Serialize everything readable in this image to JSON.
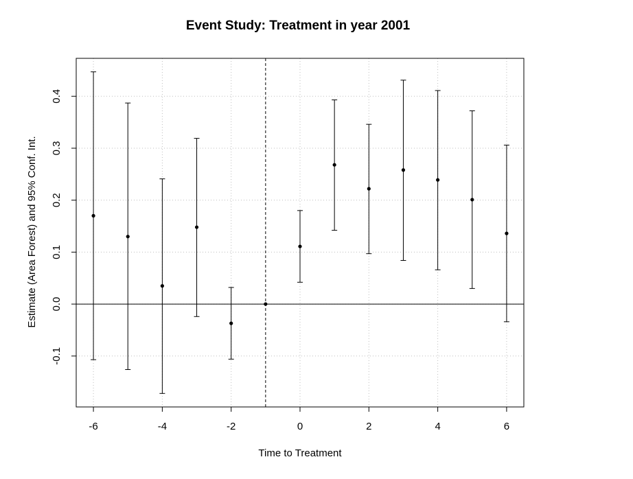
{
  "chart_data": {
    "type": "scatter",
    "title": "Event Study: Treatment in year 2001",
    "xlabel": "Time to Treatment",
    "ylabel": "Estimate (Area Forest) and 95% Conf. Int.",
    "xlim": [
      -6.5,
      6.5
    ],
    "ylim": [
      -0.198,
      0.473
    ],
    "x_ticks": [
      -6,
      -4,
      -2,
      0,
      2,
      4,
      6
    ],
    "y_ticks": [
      -0.1,
      0.0,
      0.1,
      0.2,
      0.3,
      0.4
    ],
    "x_tick_labels": [
      "-6",
      "-4",
      "-2",
      "0",
      "2",
      "4",
      "6"
    ],
    "y_tick_labels": [
      "-0.1",
      "0.0",
      "0.1",
      "0.2",
      "0.3",
      "0.4"
    ],
    "grid": true,
    "reference_line_y": 0,
    "reference_line_x": -1,
    "points": [
      {
        "x": -6,
        "estimate": 0.17,
        "ci_low": -0.107,
        "ci_high": 0.447
      },
      {
        "x": -5,
        "estimate": 0.13,
        "ci_low": -0.126,
        "ci_high": 0.387
      },
      {
        "x": -4,
        "estimate": 0.035,
        "ci_low": -0.172,
        "ci_high": 0.241
      },
      {
        "x": -3,
        "estimate": 0.148,
        "ci_low": -0.024,
        "ci_high": 0.319
      },
      {
        "x": -2,
        "estimate": -0.037,
        "ci_low": -0.106,
        "ci_high": 0.032
      },
      {
        "x": -1,
        "estimate": 0.0
      },
      {
        "x": 0,
        "estimate": 0.111,
        "ci_low": 0.042,
        "ci_high": 0.18
      },
      {
        "x": 1,
        "estimate": 0.268,
        "ci_low": 0.142,
        "ci_high": 0.393
      },
      {
        "x": 2,
        "estimate": 0.222,
        "ci_low": 0.097,
        "ci_high": 0.346
      },
      {
        "x": 3,
        "estimate": 0.258,
        "ci_low": 0.084,
        "ci_high": 0.431
      },
      {
        "x": 4,
        "estimate": 0.239,
        "ci_low": 0.066,
        "ci_high": 0.411
      },
      {
        "x": 5,
        "estimate": 0.201,
        "ci_low": 0.03,
        "ci_high": 0.372
      },
      {
        "x": 6,
        "estimate": 0.136,
        "ci_low": -0.034,
        "ci_high": 0.306
      }
    ],
    "colors": {
      "points": "#000000",
      "grid": "#bdbdbd",
      "axes": "#000000"
    }
  }
}
